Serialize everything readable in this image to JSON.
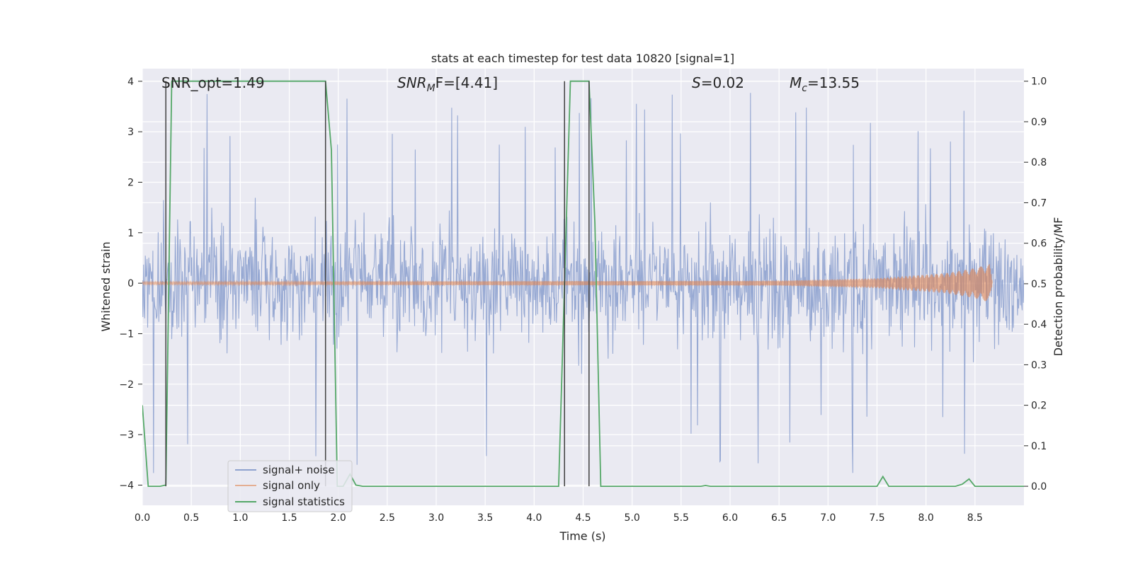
{
  "chart_data": {
    "type": "line",
    "title": "stats at each timestep for test data 10820 [signal=1]",
    "xlabel": "Time (s)",
    "ylabel_left": "Whitened strain",
    "ylabel_right": "Detection probability/MF",
    "xlim": [
      0.0,
      9.0
    ],
    "ylim_left": [
      -4.4,
      4.25
    ],
    "ylim_right": [
      -0.047,
      1.031
    ],
    "grid": true,
    "legend_position": "lower-left",
    "x_ticks": [
      "0.0",
      "0.5",
      "1.0",
      "1.5",
      "2.0",
      "2.5",
      "3.0",
      "3.5",
      "4.0",
      "4.5",
      "5.0",
      "5.5",
      "6.0",
      "6.5",
      "7.0",
      "7.5",
      "8.0",
      "8.5"
    ],
    "x_tick_values": [
      0.0,
      0.5,
      1.0,
      1.5,
      2.0,
      2.5,
      3.0,
      3.5,
      4.0,
      4.5,
      5.0,
      5.5,
      6.0,
      6.5,
      7.0,
      7.5,
      8.0,
      8.5
    ],
    "y_left_ticks": [
      "−4",
      "−3",
      "−2",
      "−1",
      "0",
      "1",
      "2",
      "3",
      "4"
    ],
    "y_left_tick_values": [
      -4,
      -3,
      -2,
      -1,
      0,
      1,
      2,
      3,
      4
    ],
    "y_right_ticks": [
      "0.0",
      "0.1",
      "0.2",
      "0.3",
      "0.4",
      "0.5",
      "0.6",
      "0.7",
      "0.8",
      "0.9",
      "1.0"
    ],
    "y_right_tick_values": [
      0.0,
      0.1,
      0.2,
      0.3,
      0.4,
      0.5,
      0.6,
      0.7,
      0.8,
      0.9,
      1.0
    ],
    "annotations": {
      "snr_opt": "SNR_opt=1.49",
      "snr_mf_base": "SNR",
      "snr_mf_sub": "M",
      "snr_mf_rest": "F=[4.41]",
      "s_sym": "S",
      "s_value": "=0.02",
      "mc_sym": "M",
      "mc_sub": "c",
      "mc_value": "=13.55"
    },
    "series": [
      {
        "name": "signal+ noise",
        "color": "#8ea2cf",
        "kind": "noise",
        "axis": "left",
        "envelope_typical": [
          -2.4,
          2.4
        ],
        "envelope_extreme": [
          -3.85,
          3.85
        ],
        "x_range": [
          0.0,
          9.0
        ]
      },
      {
        "name": "signal only",
        "color": "#dd8452",
        "kind": "chirp",
        "axis": "left",
        "x_range": [
          0.0,
          8.68
        ],
        "amplitude": [
          {
            "x": 0.0,
            "y": 0.03
          },
          {
            "x": 6.5,
            "y": 0.05
          },
          {
            "x": 7.5,
            "y": 0.1
          },
          {
            "x": 8.2,
            "y": 0.2
          },
          {
            "x": 8.5,
            "y": 0.3
          },
          {
            "x": 8.65,
            "y": 0.38
          },
          {
            "x": 8.68,
            "y": 0.0
          }
        ]
      },
      {
        "name": "signal statistics",
        "color": "#55a868",
        "kind": "line",
        "axis": "right",
        "points": [
          {
            "x": 0.0,
            "y": 0.2
          },
          {
            "x": 0.06,
            "y": 0.0
          },
          {
            "x": 0.18,
            "y": 0.0
          },
          {
            "x": 0.24,
            "y": 0.003
          },
          {
            "x": 0.3,
            "y": 1.0
          },
          {
            "x": 1.87,
            "y": 1.0
          },
          {
            "x": 1.93,
            "y": 0.83
          },
          {
            "x": 1.99,
            "y": 0.0
          },
          {
            "x": 2.05,
            "y": 0.0
          },
          {
            "x": 2.12,
            "y": 0.03
          },
          {
            "x": 2.18,
            "y": 0.003
          },
          {
            "x": 2.25,
            "y": 0.0
          },
          {
            "x": 4.25,
            "y": 0.0
          },
          {
            "x": 4.31,
            "y": 0.5
          },
          {
            "x": 4.37,
            "y": 1.0
          },
          {
            "x": 4.56,
            "y": 1.0
          },
          {
            "x": 4.62,
            "y": 0.65
          },
          {
            "x": 4.68,
            "y": 0.0
          },
          {
            "x": 5.7,
            "y": 0.0
          },
          {
            "x": 5.75,
            "y": 0.002
          },
          {
            "x": 5.8,
            "y": 0.0
          },
          {
            "x": 7.5,
            "y": 0.0
          },
          {
            "x": 7.56,
            "y": 0.024
          },
          {
            "x": 7.62,
            "y": 0.0
          },
          {
            "x": 8.3,
            "y": 0.0
          },
          {
            "x": 8.37,
            "y": 0.005
          },
          {
            "x": 8.44,
            "y": 0.018
          },
          {
            "x": 8.5,
            "y": 0.0
          },
          {
            "x": 9.0,
            "y": 0.0
          }
        ]
      }
    ],
    "vertical_markers": [
      {
        "x": 0.24,
        "y_range": [
          0.0,
          1.0
        ],
        "color": "#404040"
      },
      {
        "x": 1.87,
        "y_range": [
          0.0,
          1.0
        ],
        "color": "#404040"
      },
      {
        "x": 4.31,
        "y_range": [
          0.0,
          1.0
        ],
        "color": "#404040"
      },
      {
        "x": 4.56,
        "y_range": [
          0.0,
          1.0
        ],
        "color": "#404040"
      }
    ]
  }
}
